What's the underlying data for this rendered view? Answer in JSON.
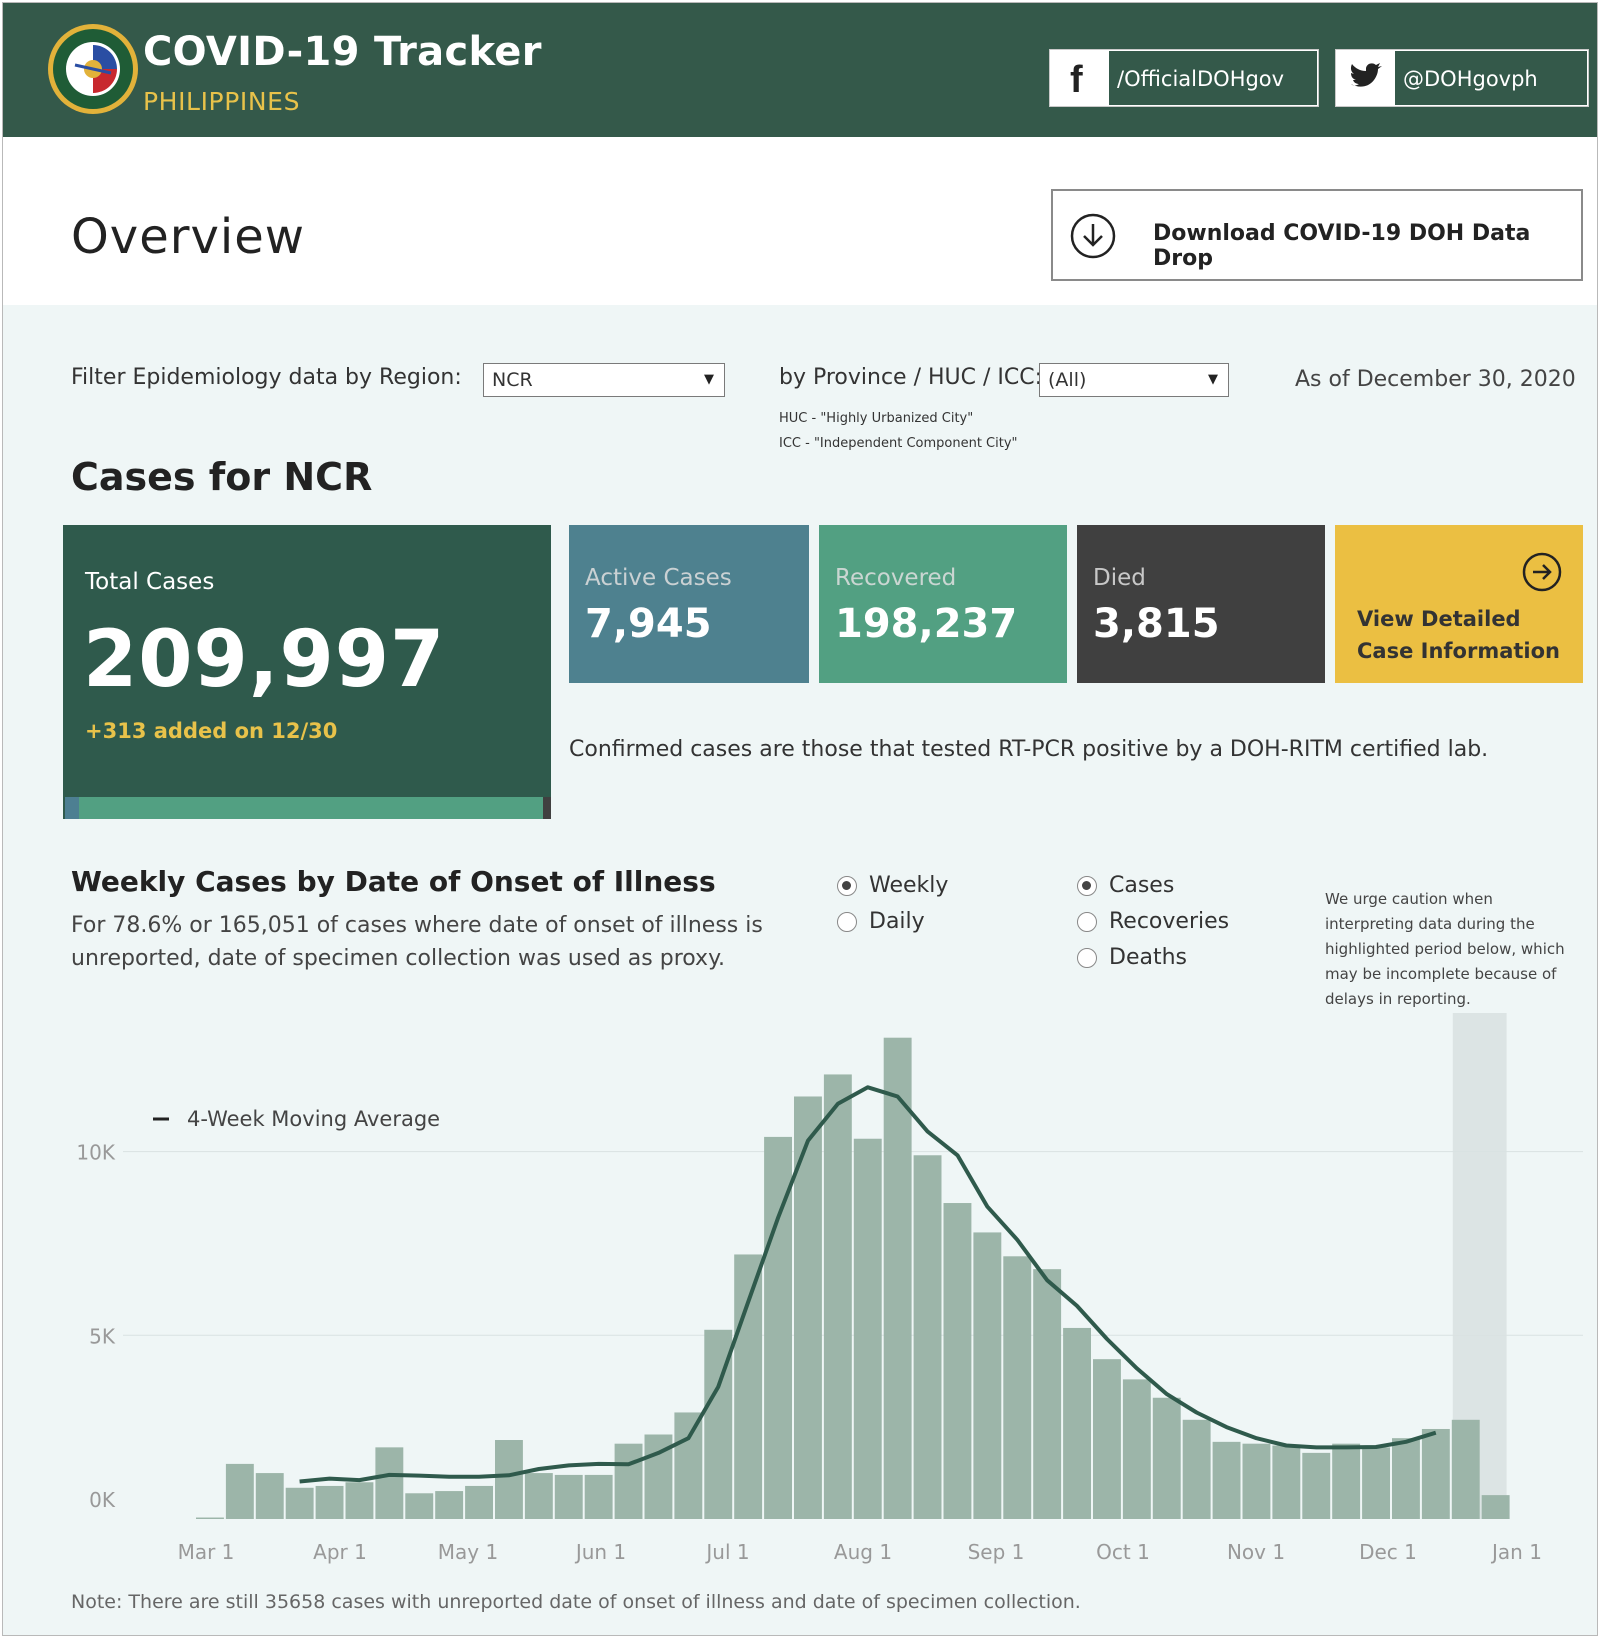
{
  "header": {
    "title": "COVID-19 Tracker",
    "subtitle": "PHILIPPINES",
    "facebook": "/OfficialDOHgov",
    "twitter": "@DOHgovph",
    "logo_lettering": "REPUBLIC OF THE PHILIPPINES DEPARTMENT OF HEALTH"
  },
  "overview": {
    "title": "Overview",
    "download_label": "Download COVID-19 DOH Data Drop"
  },
  "filters": {
    "region_label": "Filter Epidemiology data by Region:",
    "region_value": "NCR",
    "province_label": "by Province / HUC / ICC:",
    "province_value": "(All)",
    "huc_note": "HUC - \"Highly Urbanized City\"",
    "icc_note": "ICC - \"Independent Component City\"",
    "as_of": "As of December 30, 2020"
  },
  "cases": {
    "title": "Cases for NCR",
    "total_label": "Total Cases",
    "total_value": "209,997",
    "added": "+313 added on 12/30",
    "active_label": "Active Cases",
    "active_value": "7,945",
    "recovered_label": "Recovered",
    "recovered_value": "198,237",
    "died_label": "Died",
    "died_value": "3,815",
    "view_line1": "View Detailed",
    "view_line2": "Case Information",
    "confirmed_note": "Confirmed cases are those that tested RT-PCR positive by a DOH-RITM certified lab."
  },
  "weekly": {
    "title": "Weekly Cases by Date of Onset of Illness",
    "subtitle": "For 78.6% or 165,051 of cases where date of onset of illness is unreported, date of specimen collection was used as proxy.",
    "radio_period": [
      "Weekly",
      "Daily"
    ],
    "radio_period_selected": "Weekly",
    "radio_metric": [
      "Cases",
      "Recoveries",
      "Deaths"
    ],
    "radio_metric_selected": "Cases",
    "caution": "We urge caution when interpreting data during the highlighted period below, which may be incomplete because of delays in reporting.",
    "note": "Note: There are still 35658 cases with unreported date of onset of illness and date of specimen collection."
  },
  "colors": {
    "header_bg": "#34594a",
    "accent_yellow": "#e8c24a",
    "active": "#4e818f",
    "recovered": "#52a082",
    "died": "#404040",
    "bar": "#9cb5a9",
    "line": "#2f5a4c"
  },
  "chart_data": {
    "type": "bar",
    "legend": "4-Week Moving Average",
    "y_ticks": [
      "10K",
      "5K",
      "0K"
    ],
    "x_ticks": [
      "Mar 1",
      "Apr 1",
      "May 1",
      "Jun 1",
      "Jul 1",
      "Aug 1",
      "Sep 1",
      "Oct 1",
      "Nov 1",
      "Dec 1",
      "Jan 1"
    ],
    "ylim": [
      0,
      13500
    ],
    "first_week": "Feb 24",
    "series": [
      {
        "values": [
          40,
          1500,
          1250,
          850,
          900,
          1000,
          1950,
          700,
          760,
          900,
          2150,
          1250,
          1200,
          1200,
          2050,
          2300,
          2900,
          5150,
          7200,
          10400,
          11500,
          12100,
          10350,
          13100,
          9900,
          8600,
          7800,
          7150,
          6800,
          5200,
          4350,
          3800,
          3300,
          2700,
          2100,
          2050,
          2000,
          1800,
          2050,
          1950,
          2200,
          2450,
          2700,
          650
        ]
      },
      {
        "values": [
          null,
          null,
          null,
          1020,
          1100,
          1060,
          1200,
          1180,
          1150,
          1150,
          1190,
          1360,
          1460,
          1500,
          1490,
          1800,
          2200,
          3600,
          5900,
          8200,
          10300,
          11300,
          11750,
          11500,
          10550,
          9900,
          8500,
          7600,
          6500,
          5800,
          4900,
          4100,
          3400,
          2900,
          2500,
          2200,
          2000,
          1950,
          1950,
          1960,
          2100,
          2350,
          null,
          null
        ]
      }
    ],
    "highlight_weeks": [
      42,
      43
    ],
    "grid": true
  }
}
